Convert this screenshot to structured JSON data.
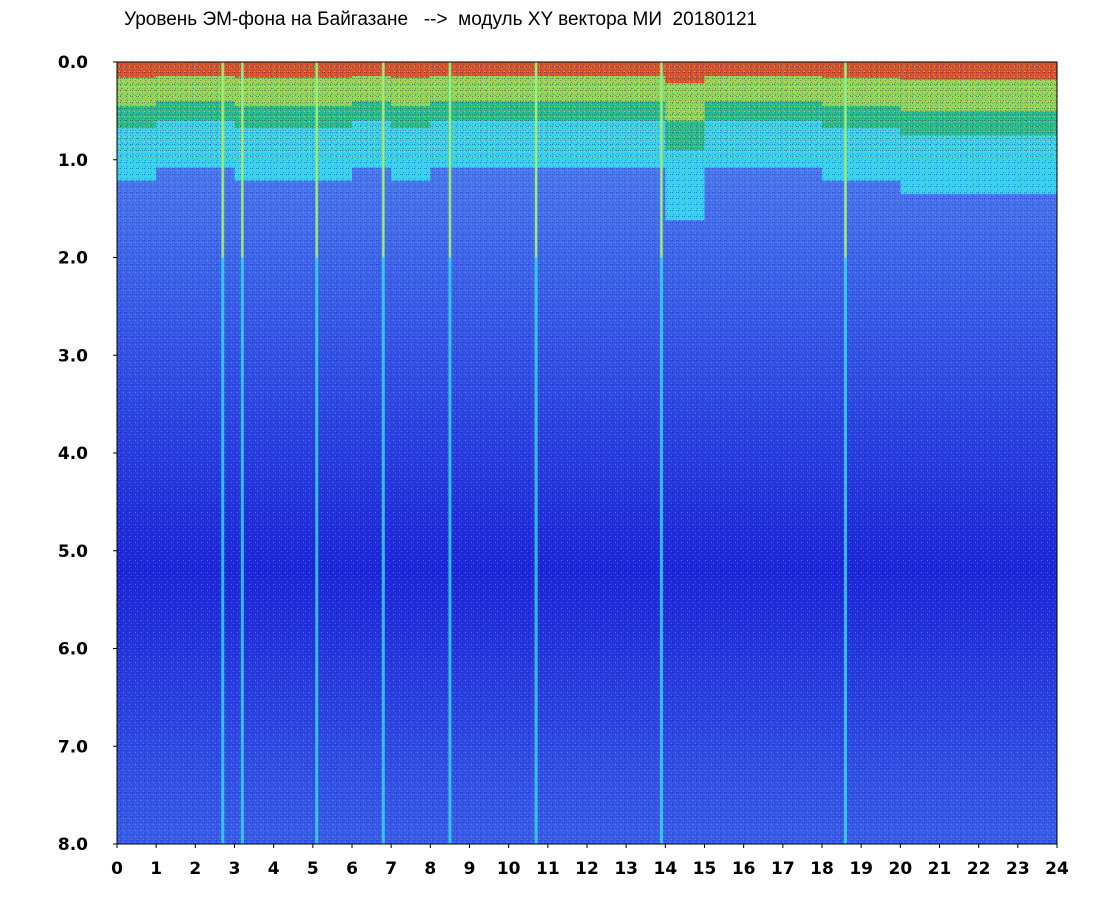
{
  "chart_data": {
    "type": "heatmap",
    "title": "Уровень ЭМ-фона на Байгазане   -->  модуль XY вектора МИ  20180121",
    "xlabel": "",
    "ylabel": "",
    "xlim": [
      0,
      24
    ],
    "ylim": [
      0.0,
      8.0
    ],
    "y_inverted": true,
    "grid": false,
    "legend": "none",
    "x_ticks": [
      "0",
      "1",
      "2",
      "3",
      "4",
      "5",
      "6",
      "7",
      "8",
      "9",
      "10",
      "11",
      "12",
      "13",
      "14",
      "15",
      "16",
      "17",
      "18",
      "19",
      "20",
      "21",
      "22",
      "23",
      "24"
    ],
    "y_ticks": [
      "0.0",
      "1.0",
      "2.0",
      "3.0",
      "4.0",
      "5.0",
      "6.0",
      "7.0",
      "8.0"
    ],
    "color_scale": [
      "#1c24d8",
      "#3a5ee8",
      "#5a8ef0",
      "#32e0ec",
      "#12b032",
      "#f0f020",
      "#ff2010"
    ],
    "high_band_depth_by_hour": [
      {
        "hour": 0,
        "depth": 0.9
      },
      {
        "hour": 1,
        "depth": 0.8
      },
      {
        "hour": 2,
        "depth": 0.8
      },
      {
        "hour": 3,
        "depth": 0.9
      },
      {
        "hour": 4,
        "depth": 0.9
      },
      {
        "hour": 5,
        "depth": 0.9
      },
      {
        "hour": 6,
        "depth": 0.8
      },
      {
        "hour": 7,
        "depth": 0.9
      },
      {
        "hour": 8,
        "depth": 0.8
      },
      {
        "hour": 9,
        "depth": 0.8
      },
      {
        "hour": 10,
        "depth": 0.8
      },
      {
        "hour": 11,
        "depth": 0.8
      },
      {
        "hour": 12,
        "depth": 0.8
      },
      {
        "hour": 13,
        "depth": 0.8
      },
      {
        "hour": 14,
        "depth": 1.2
      },
      {
        "hour": 15,
        "depth": 0.8
      },
      {
        "hour": 16,
        "depth": 0.8
      },
      {
        "hour": 17,
        "depth": 0.8
      },
      {
        "hour": 18,
        "depth": 0.9
      },
      {
        "hour": 19,
        "depth": 0.9
      },
      {
        "hour": 20,
        "depth": 1.0
      },
      {
        "hour": 21,
        "depth": 1.0
      },
      {
        "hour": 22,
        "depth": 1.0
      },
      {
        "hour": 23,
        "depth": 1.0
      },
      {
        "hour": 24,
        "depth": 0.9
      }
    ],
    "bright_streaks_hours": [
      2.7,
      3.2,
      5.1,
      6.8,
      8.5,
      10.7,
      13.9,
      18.6
    ]
  }
}
